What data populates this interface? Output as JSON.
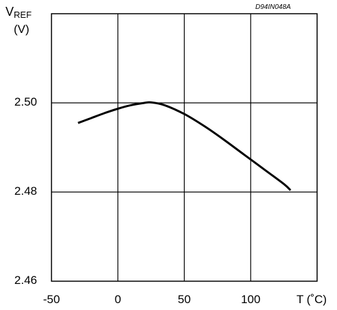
{
  "chart_data": {
    "type": "line",
    "code": "D94IN048A",
    "ylabel_main": "V",
    "ylabel_sub": "REF",
    "ylabel_unit": "(V)",
    "xlabel": "T (˚C)",
    "xlim": [
      -50,
      150
    ],
    "ylim": [
      2.46,
      2.52
    ],
    "xticks": [
      -50,
      0,
      50,
      100
    ],
    "xtick_labels": [
      "-50",
      "0",
      "50",
      "100"
    ],
    "yticks": [
      2.46,
      2.48,
      2.5
    ],
    "ytick_labels": [
      "2.46",
      "2.48",
      "2.50"
    ],
    "grid": true,
    "series": [
      {
        "x": [
          -30,
          -20,
          -10,
          0,
          10,
          20,
          25,
          35,
          50,
          65,
          80,
          95,
          110,
          125,
          130
        ],
        "y": [
          2.4955,
          2.4966,
          2.4977,
          2.4987,
          2.4995,
          2.5,
          2.5001,
          2.4995,
          2.4975,
          2.4948,
          2.4917,
          2.4884,
          2.4851,
          2.4818,
          2.4804
        ],
        "color": "#000000"
      }
    ]
  }
}
